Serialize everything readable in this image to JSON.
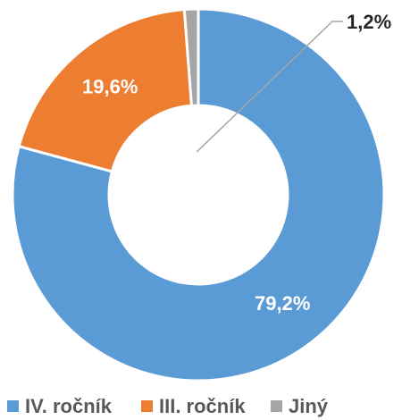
{
  "chart_data": {
    "type": "donut",
    "categories": [
      "IV. ročník",
      "III. ročník",
      "Jiný"
    ],
    "values": [
      79.2,
      19.6,
      1.2
    ],
    "value_labels": [
      "79,2%",
      "19,6%",
      "1,2%"
    ],
    "colors": [
      "#5b9bd5",
      "#ed7d31",
      "#a5a5a5"
    ],
    "legend": "bottom"
  }
}
